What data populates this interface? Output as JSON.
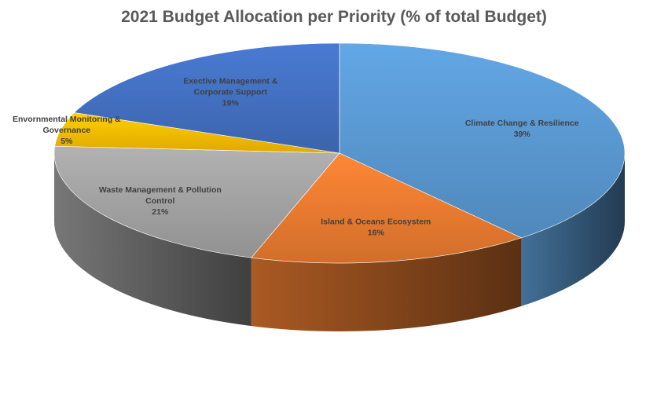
{
  "chart_data": {
    "type": "pie",
    "title": "2021 Budget Allocation per Priority (% of total Budget)",
    "three_d": true,
    "start_angle_deg": 0,
    "direction": "clockwise",
    "slices": [
      {
        "label_lines": [
          "Climate Change & Resilience"
        ],
        "value": 39,
        "value_label": "39%",
        "color": "#5b9bd5"
      },
      {
        "label_lines": [
          "Island & Oceans Ecosystem"
        ],
        "value": 16,
        "value_label": "16%",
        "color": "#ed7d31"
      },
      {
        "label_lines": [
          "Waste Management & Pollution",
          "Control"
        ],
        "value": 21,
        "value_label": "21%",
        "color": "#a5a5a5"
      },
      {
        "label_lines": [
          "Envornmental Monitoring &",
          "Governance"
        ],
        "value": 5,
        "value_label": "5%",
        "color": "#ffc000"
      },
      {
        "label_lines": [
          "Exective Management &",
          "Corporate Support"
        ],
        "value": 19,
        "value_label": "19%",
        "color": "#4472c4"
      }
    ]
  }
}
